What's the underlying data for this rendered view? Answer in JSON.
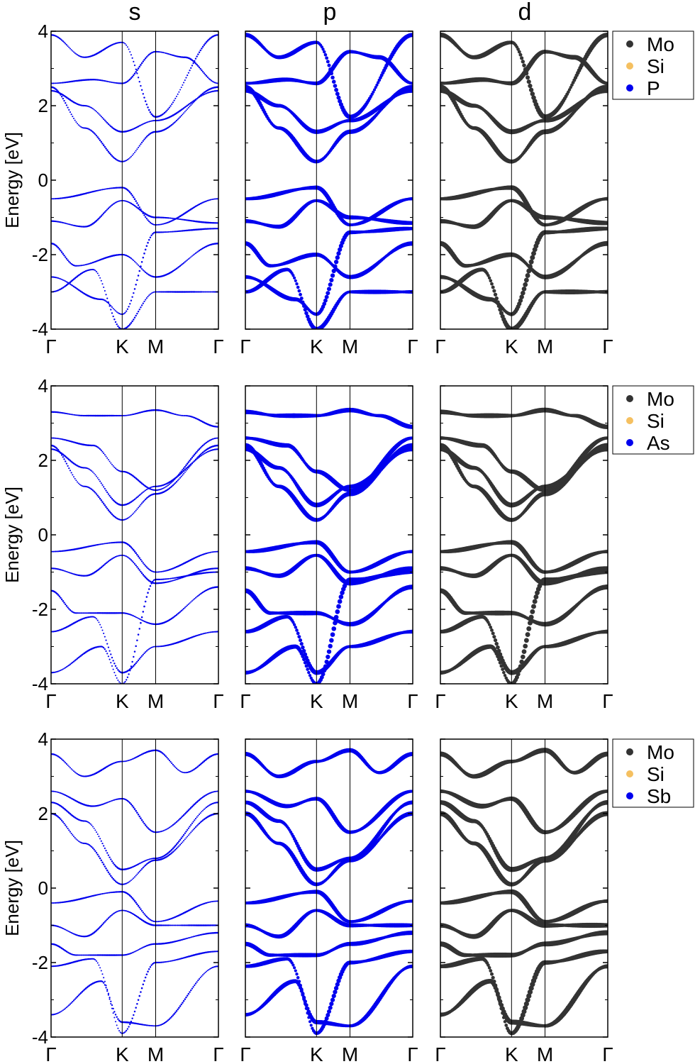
{
  "figure": {
    "column_titles": [
      "s",
      "p",
      "d"
    ],
    "ylabel": "Energy [eV]",
    "kpath_labels": [
      "Γ",
      "K",
      "M",
      "Γ"
    ],
    "kpath_positions": [
      0,
      0.425,
      0.625,
      1.0
    ],
    "colors": {
      "Mo": "#333333",
      "Si": "#f5c060",
      "X": "#0000ee",
      "axis": "#000000"
    }
  },
  "chart_data": [
    {
      "type": "scatter",
      "row": 0,
      "legend": [
        "Mo",
        "Si",
        "P"
      ],
      "ylim": [
        -4,
        4
      ],
      "yticks": [
        4,
        2,
        0,
        -2,
        -4
      ],
      "xticklabels": [
        "Γ",
        "K",
        "M",
        "Γ"
      ],
      "bands": [
        [
          [
            0,
            -0.5
          ],
          [
            0.425,
            -0.2
          ],
          [
            0.625,
            -1.2
          ],
          [
            1.0,
            -0.5
          ]
        ],
        [
          [
            0,
            -1.1
          ],
          [
            0.2,
            -1.25
          ],
          [
            0.425,
            -0.55
          ],
          [
            0.625,
            -1.0
          ],
          [
            1.0,
            -1.15
          ]
        ],
        [
          [
            0,
            -1.7
          ],
          [
            0.15,
            -2.3
          ],
          [
            0.425,
            -2.0
          ],
          [
            0.625,
            -2.6
          ],
          [
            1.0,
            -1.7
          ]
        ],
        [
          [
            0,
            -3.0
          ],
          [
            0.25,
            -2.4
          ],
          [
            0.425,
            -4.0
          ],
          [
            0.625,
            -3.0
          ],
          [
            1.0,
            -3.0
          ]
        ],
        [
          [
            0,
            -2.6
          ],
          [
            0.3,
            -3.2
          ],
          [
            0.425,
            -3.6
          ],
          [
            0.625,
            -1.4
          ],
          [
            1.0,
            -1.3
          ]
        ],
        [
          [
            0,
            2.5
          ],
          [
            0.2,
            1.4
          ],
          [
            0.425,
            0.5
          ],
          [
            0.625,
            1.3
          ],
          [
            1.0,
            2.5
          ]
        ],
        [
          [
            0,
            2.4
          ],
          [
            0.2,
            2.0
          ],
          [
            0.425,
            1.3
          ],
          [
            0.625,
            1.6
          ],
          [
            1.0,
            2.4
          ]
        ],
        [
          [
            0,
            2.6
          ],
          [
            0.25,
            2.7
          ],
          [
            0.425,
            2.6
          ],
          [
            0.625,
            3.45
          ],
          [
            0.8,
            3.3
          ],
          [
            1.0,
            2.6
          ]
        ],
        [
          [
            0,
            3.9
          ],
          [
            0.2,
            3.3
          ],
          [
            0.425,
            3.7
          ],
          [
            0.625,
            1.7
          ],
          [
            1.0,
            3.9
          ]
        ]
      ],
      "orbital_weights": {
        "s": {
          "Mo": 0.05,
          "Si": 0.03,
          "X": 0.2
        },
        "p": {
          "Mo": 0.1,
          "Si": 0.05,
          "X": 0.75
        },
        "d": {
          "Mo": 0.85,
          "Si": 0.02,
          "X": 0.15
        }
      }
    },
    {
      "type": "scatter",
      "row": 1,
      "legend": [
        "Mo",
        "Si",
        "As"
      ],
      "ylim": [
        -4,
        4
      ],
      "yticks": [
        4,
        2,
        0,
        -2,
        -4
      ],
      "xticklabels": [
        "Γ",
        "K",
        "M",
        "Γ"
      ],
      "bands": [
        [
          [
            0,
            -0.45
          ],
          [
            0.425,
            -0.2
          ],
          [
            0.625,
            -1.0
          ],
          [
            1.0,
            -0.45
          ]
        ],
        [
          [
            0,
            -0.9
          ],
          [
            0.2,
            -1.1
          ],
          [
            0.425,
            -0.55
          ],
          [
            0.625,
            -1.3
          ],
          [
            1.0,
            -0.9
          ]
        ],
        [
          [
            0,
            -1.5
          ],
          [
            0.15,
            -2.1
          ],
          [
            0.425,
            -2.1
          ],
          [
            0.625,
            -2.4
          ],
          [
            1.0,
            -1.4
          ]
        ],
        [
          [
            0,
            -2.6
          ],
          [
            0.25,
            -2.2
          ],
          [
            0.425,
            -3.7
          ],
          [
            0.625,
            -3.0
          ],
          [
            1.0,
            -2.6
          ]
        ],
        [
          [
            0,
            -3.7
          ],
          [
            0.3,
            -3.0
          ],
          [
            0.425,
            -4.0
          ],
          [
            0.625,
            -1.2
          ],
          [
            1.0,
            -1.0
          ]
        ],
        [
          [
            0,
            2.4
          ],
          [
            0.2,
            1.3
          ],
          [
            0.425,
            0.4
          ],
          [
            0.625,
            1.1
          ],
          [
            1.0,
            2.4
          ]
        ],
        [
          [
            0,
            2.3
          ],
          [
            0.2,
            1.8
          ],
          [
            0.425,
            0.8
          ],
          [
            0.625,
            1.3
          ],
          [
            1.0,
            2.3
          ]
        ],
        [
          [
            0,
            2.6
          ],
          [
            0.25,
            2.4
          ],
          [
            0.425,
            1.7
          ],
          [
            0.625,
            1.2
          ],
          [
            1.0,
            2.6
          ]
        ],
        [
          [
            0,
            3.3
          ],
          [
            0.2,
            3.2
          ],
          [
            0.425,
            3.2
          ],
          [
            0.625,
            3.35
          ],
          [
            0.8,
            3.2
          ],
          [
            1.0,
            2.9
          ]
        ]
      ],
      "orbital_weights": {
        "s": {
          "Mo": 0.05,
          "Si": 0.03,
          "X": 0.2
        },
        "p": {
          "Mo": 0.1,
          "Si": 0.05,
          "X": 0.8
        },
        "d": {
          "Mo": 0.85,
          "Si": 0.02,
          "X": 0.15
        }
      }
    },
    {
      "type": "scatter",
      "row": 2,
      "legend": [
        "Mo",
        "Si",
        "Sb"
      ],
      "ylim": [
        -4,
        4
      ],
      "yticks": [
        4,
        2,
        0,
        -2,
        -4
      ],
      "xticklabels": [
        "Γ",
        "K",
        "M",
        "Γ"
      ],
      "bands": [
        [
          [
            0,
            -0.4
          ],
          [
            0.425,
            -0.1
          ],
          [
            0.625,
            -0.9
          ],
          [
            1.0,
            -0.35
          ]
        ],
        [
          [
            0,
            -1.0
          ],
          [
            0.2,
            -1.3
          ],
          [
            0.425,
            -0.6
          ],
          [
            0.625,
            -1.0
          ],
          [
            1.0,
            -1.0
          ]
        ],
        [
          [
            0,
            -1.5
          ],
          [
            0.15,
            -1.8
          ],
          [
            0.425,
            -1.8
          ],
          [
            0.625,
            -1.5
          ],
          [
            1.0,
            -1.2
          ]
        ],
        [
          [
            0,
            -2.1
          ],
          [
            0.25,
            -1.9
          ],
          [
            0.425,
            -3.6
          ],
          [
            0.625,
            -3.7
          ],
          [
            1.0,
            -2.1
          ]
        ],
        [
          [
            0,
            -3.4
          ],
          [
            0.3,
            -2.5
          ],
          [
            0.425,
            -3.9
          ],
          [
            0.625,
            -2.0
          ],
          [
            1.0,
            -1.7
          ]
        ],
        [
          [
            0,
            2.0
          ],
          [
            0.2,
            1.2
          ],
          [
            0.425,
            0.1
          ],
          [
            0.625,
            0.75
          ],
          [
            1.0,
            2.0
          ]
        ],
        [
          [
            0,
            2.3
          ],
          [
            0.2,
            1.8
          ],
          [
            0.425,
            0.5
          ],
          [
            0.625,
            0.8
          ],
          [
            1.0,
            2.3
          ]
        ],
        [
          [
            0,
            2.6
          ],
          [
            0.25,
            2.2
          ],
          [
            0.425,
            2.4
          ],
          [
            0.625,
            1.5
          ],
          [
            1.0,
            2.6
          ]
        ],
        [
          [
            0,
            3.6
          ],
          [
            0.2,
            3.0
          ],
          [
            0.425,
            3.4
          ],
          [
            0.625,
            3.7
          ],
          [
            0.8,
            3.1
          ],
          [
            1.0,
            3.6
          ]
        ]
      ],
      "orbital_weights": {
        "s": {
          "Mo": 0.05,
          "Si": 0.03,
          "X": 0.2
        },
        "p": {
          "Mo": 0.1,
          "Si": 0.05,
          "X": 0.75
        },
        "d": {
          "Mo": 0.9,
          "Si": 0.02,
          "X": 0.1
        }
      }
    }
  ]
}
